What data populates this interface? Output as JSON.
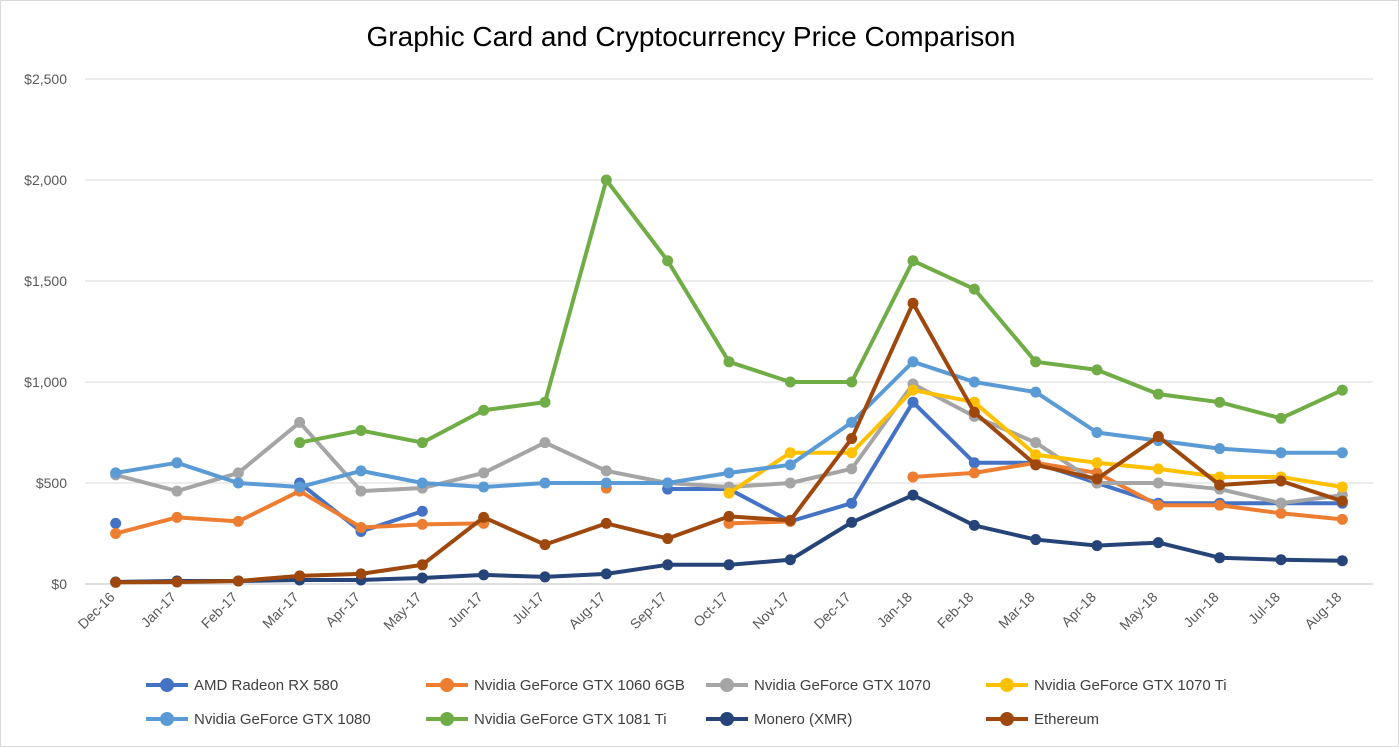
{
  "chart_data": {
    "type": "line",
    "title": "Graphic Card and Cryptocurrency Price Comparison",
    "xlabel": "",
    "ylabel": "",
    "ylim": [
      0,
      2500
    ],
    "y_ticks": [
      "$0",
      "$500",
      "$1,000",
      "$1,500",
      "$2,000",
      "$2,500"
    ],
    "y_tick_values": [
      0,
      500,
      1000,
      1500,
      2000,
      2500
    ],
    "grid": true,
    "legend_position": "bottom",
    "categories": [
      "Dec-16",
      "Jan-17",
      "Feb-17",
      "Mar-17",
      "Apr-17",
      "May-17",
      "Jun-17",
      "Jul-17",
      "Aug-17",
      "Sep-17",
      "Oct-17",
      "Nov-17",
      "Dec-17",
      "Jan-18",
      "Feb-18",
      "Mar-18",
      "Apr-18",
      "May-18",
      "Jun-18",
      "Jul-18",
      "Aug-18"
    ],
    "series": [
      {
        "name": "AMD Radeon RX 580",
        "color": "#4472c4",
        "values": [
          300,
          null,
          null,
          500,
          260,
          360,
          null,
          null,
          null,
          470,
          470,
          310,
          400,
          900,
          600,
          600,
          500,
          400,
          400,
          400,
          400
        ]
      },
      {
        "name": "Nvidia GeForce GTX 1060 6GB",
        "color": "#ed7d31",
        "values": [
          250,
          330,
          310,
          460,
          280,
          295,
          300,
          null,
          475,
          null,
          300,
          310,
          null,
          530,
          550,
          600,
          550,
          390,
          390,
          350,
          320
        ]
      },
      {
        "name": "Nvidia GeForce GTX 1070",
        "color": "#a5a5a5",
        "values": [
          540,
          460,
          550,
          800,
          460,
          475,
          550,
          700,
          560,
          500,
          480,
          500,
          570,
          990,
          830,
          700,
          500,
          500,
          470,
          400,
          440
        ]
      },
      {
        "name": "Nvidia GeForce GTX 1070 Ti",
        "color": "#ffc000",
        "values": [
          null,
          null,
          null,
          null,
          null,
          null,
          null,
          null,
          null,
          null,
          450,
          650,
          650,
          960,
          900,
          640,
          600,
          570,
          530,
          530,
          480
        ]
      },
      {
        "name": "Nvidia GeForce GTX 1080",
        "color": "#5b9bd5",
        "values": [
          550,
          600,
          500,
          480,
          560,
          500,
          480,
          500,
          500,
          500,
          550,
          590,
          800,
          1100,
          1000,
          950,
          750,
          710,
          670,
          650,
          650
        ]
      },
      {
        "name": "Nvidia GeForce GTX 1081 Ti",
        "color": "#70ad47",
        "values": [
          null,
          null,
          null,
          700,
          760,
          700,
          860,
          900,
          2000,
          1600,
          1100,
          1000,
          1000,
          1600,
          1460,
          1100,
          1060,
          940,
          900,
          820,
          960
        ]
      },
      {
        "name": "Monero (XMR)",
        "color": "#264478",
        "values": [
          10,
          15,
          15,
          20,
          20,
          30,
          45,
          35,
          50,
          95,
          95,
          120,
          305,
          440,
          290,
          220,
          190,
          205,
          130,
          120,
          115
        ]
      },
      {
        "name": "Ethereum",
        "color": "#9e480e",
        "values": [
          8,
          10,
          15,
          40,
          50,
          95,
          330,
          195,
          300,
          225,
          335,
          315,
          720,
          1390,
          850,
          590,
          520,
          730,
          490,
          510,
          410
        ]
      }
    ]
  }
}
